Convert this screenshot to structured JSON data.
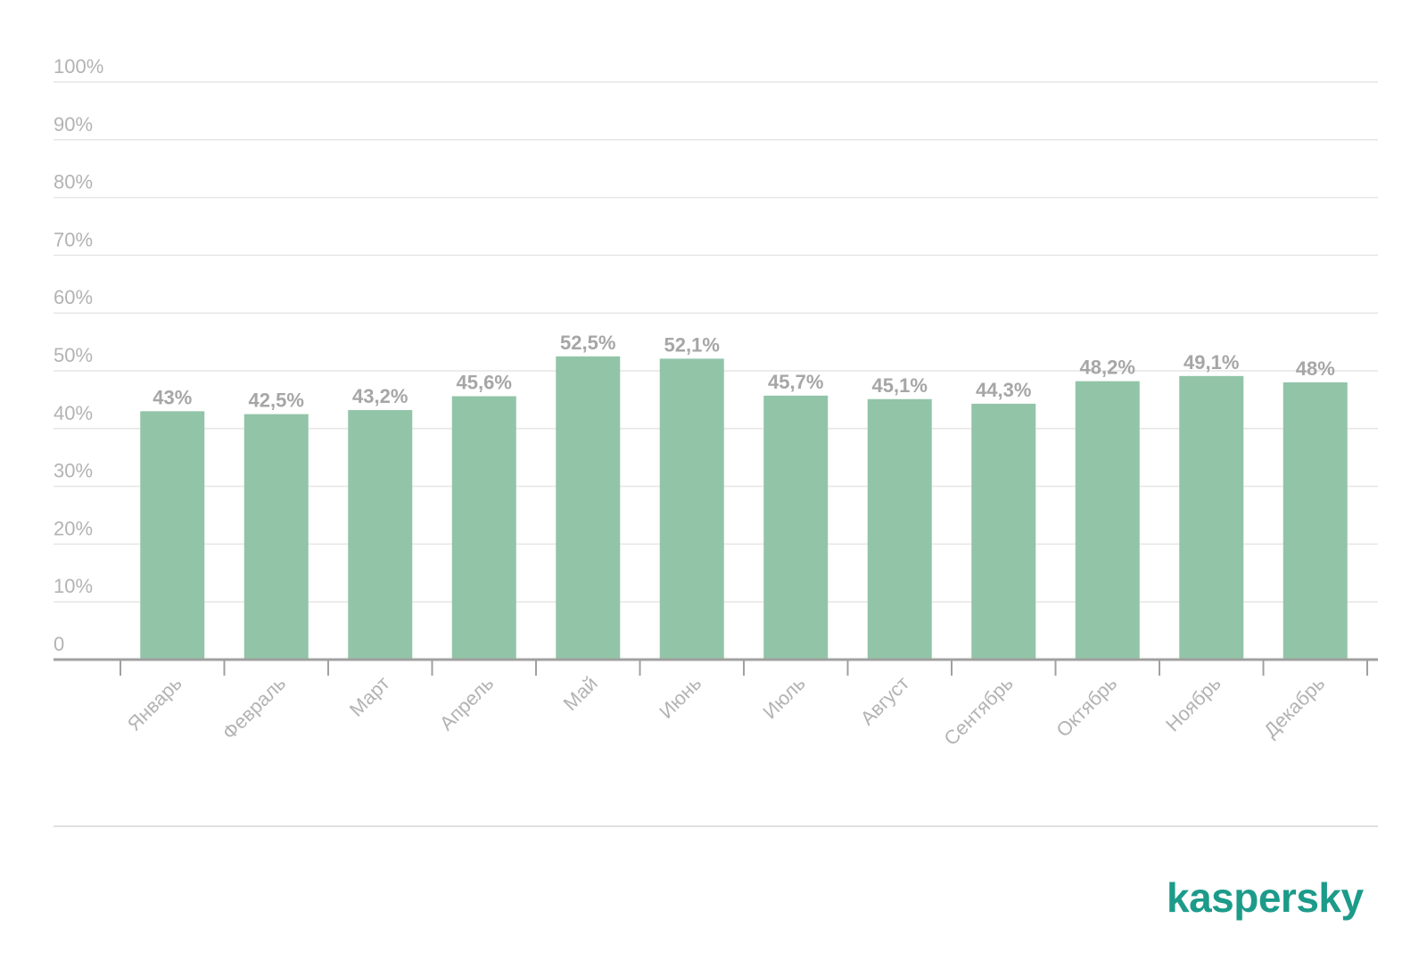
{
  "chart_data": {
    "type": "bar",
    "categories": [
      "Январь",
      "Февраль",
      "Март",
      "Апрель",
      "Май",
      "Июнь",
      "Июль",
      "Август",
      "Сентябрь",
      "Октябрь",
      "Ноябрь",
      "Декабрь"
    ],
    "values": [
      43,
      42.5,
      43.2,
      45.6,
      52.5,
      52.1,
      45.7,
      45.1,
      44.3,
      48.2,
      49.1,
      48
    ],
    "value_labels": [
      "43%",
      "42,5%",
      "43,2%",
      "45,6%",
      "52,5%",
      "52,1%",
      "45,7%",
      "45,1%",
      "44,3%",
      "48,2%",
      "49,1%",
      "48%"
    ],
    "y_tick_labels": [
      "0",
      "10%",
      "20%",
      "30%",
      "40%",
      "50%",
      "60%",
      "70%",
      "80%",
      "90%",
      "100%"
    ],
    "ylim": [
      0,
      100
    ],
    "y_step": 10,
    "grid": true,
    "bar_color": "#92c4a8",
    "x_label_rotation": "-45deg"
  },
  "brand": {
    "logo_text": "kaspersky",
    "logo_color": "#1d9b8a"
  }
}
